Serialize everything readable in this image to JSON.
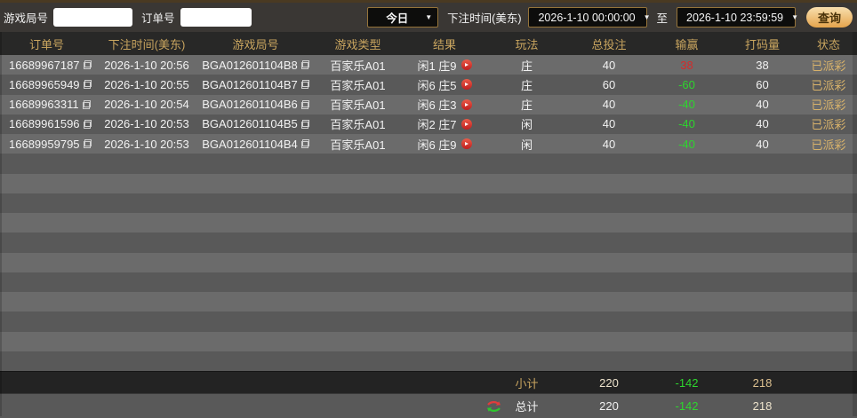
{
  "toolbar": {
    "game_round_label": "游戏局号",
    "game_round_value": "",
    "order_label": "订单号",
    "order_value": "",
    "range_select_value": "今日",
    "bet_time_label": "下注时间(美东)",
    "start_time": "2026-1-10 00:00:00",
    "to_label": "至",
    "end_time": "2026-1-10 23:59:59",
    "search_button_label": "查询"
  },
  "icons": {
    "dropdown_arrow": "▼"
  },
  "colors": {
    "accent_gold": "#c9a55f",
    "win_red": "#d42b2b",
    "loss_green": "#2ed52e",
    "status_gold": "#d8b26a",
    "button_orange": "#e5a44c"
  },
  "table": {
    "headers": [
      "订单号",
      "下注时间(美东)",
      "游戏局号",
      "游戏类型",
      "结果",
      "玩法",
      "总投注",
      "输赢",
      "打码量",
      "状态"
    ],
    "rows": [
      {
        "order_id": "16689967187",
        "bet_time": "2026-1-10 20:56",
        "round_id": "BGA012601104B8",
        "game_type": "百家乐A01",
        "result": "闲1 庄9",
        "play": "庄",
        "total_bet": "40",
        "win_loss": "38",
        "win_loss_color": "red",
        "turnover": "38",
        "status": "已派彩"
      },
      {
        "order_id": "16689965949",
        "bet_time": "2026-1-10 20:55",
        "round_id": "BGA012601104B7",
        "game_type": "百家乐A01",
        "result": "闲6 庄5",
        "play": "庄",
        "total_bet": "60",
        "win_loss": "-60",
        "win_loss_color": "green",
        "turnover": "60",
        "status": "已派彩"
      },
      {
        "order_id": "16689963311",
        "bet_time": "2026-1-10 20:54",
        "round_id": "BGA012601104B6",
        "game_type": "百家乐A01",
        "result": "闲6 庄3",
        "play": "庄",
        "total_bet": "40",
        "win_loss": "-40",
        "win_loss_color": "green",
        "turnover": "40",
        "status": "已派彩"
      },
      {
        "order_id": "16689961596",
        "bet_time": "2026-1-10 20:53",
        "round_id": "BGA012601104B5",
        "game_type": "百家乐A01",
        "result": "闲2 庄7",
        "play": "闲",
        "total_bet": "40",
        "win_loss": "-40",
        "win_loss_color": "green",
        "turnover": "40",
        "status": "已派彩"
      },
      {
        "order_id": "16689959795",
        "bet_time": "2026-1-10 20:53",
        "round_id": "BGA012601104B4",
        "game_type": "百家乐A01",
        "result": "闲6 庄9",
        "play": "闲",
        "total_bet": "40",
        "win_loss": "-40",
        "win_loss_color": "green",
        "turnover": "40",
        "status": "已派彩"
      }
    ],
    "subtotal": {
      "label": "小计",
      "total_bet": "220",
      "win_loss": "-142",
      "turnover": "218"
    },
    "grand_total": {
      "label": "总计",
      "total_bet": "220",
      "win_loss": "-142",
      "turnover": "218"
    }
  }
}
